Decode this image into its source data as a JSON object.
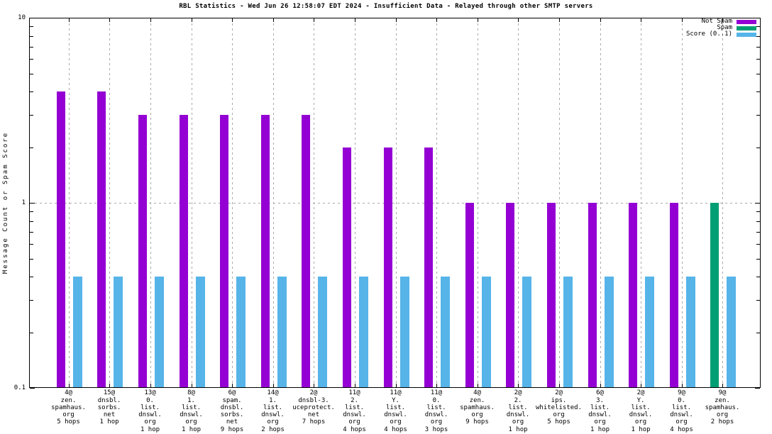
{
  "chart_data": {
    "type": "bar",
    "title": "RBL Statistics - Wed Jun 26 12:58:07 EDT 2024 - Insufficient Data - Relayed through other SMTP servers",
    "ylabel": "Message Count or Spam Score",
    "xlabel": "",
    "y_scale": "log",
    "ylim": [
      0.1,
      10
    ],
    "grid": {
      "horizontal_dashed_at": 1,
      "vertical_dashed_at_each_category": true,
      "color": "#a8a8a8"
    },
    "legend_position": "top-right-inside",
    "yticks": [
      {
        "value": 10,
        "label": "10"
      },
      {
        "value": 1,
        "label": "1"
      },
      {
        "value": 0.1,
        "label": "0.1"
      }
    ],
    "categories": [
      [
        "4@",
        "zen.",
        "spamhaus.",
        "org",
        "5 hops"
      ],
      [
        "15@",
        "dnsbl.",
        "sorbs.",
        "net",
        "1 hop"
      ],
      [
        "13@",
        "0.",
        "list.",
        "dnswl.",
        "org",
        "1 hop"
      ],
      [
        "8@",
        "1.",
        "list.",
        "dnswl.",
        "org",
        "1 hop"
      ],
      [
        "6@",
        "spam.",
        "dnsbl.",
        "sorbs.",
        "net",
        "9 hops"
      ],
      [
        "14@",
        "1.",
        "list.",
        "dnswl.",
        "org",
        "2 hops"
      ],
      [
        "2@",
        "dnsbl-3.",
        "uceprotect.",
        "net",
        "7 hops"
      ],
      [
        "11@",
        "2.",
        "list.",
        "dnswl.",
        "org",
        "4 hops"
      ],
      [
        "11@",
        "Y.",
        "list.",
        "dnswl.",
        "org",
        "4 hops"
      ],
      [
        "11@",
        "0.",
        "list.",
        "dnswl.",
        "org",
        "3 hops"
      ],
      [
        "4@",
        "zen.",
        "spamhaus.",
        "org",
        "9 hops"
      ],
      [
        "2@",
        "2.",
        "list.",
        "dnswl.",
        "org",
        "1 hop"
      ],
      [
        "2@",
        "ips.",
        "whitelisted.",
        "org",
        "5 hops"
      ],
      [
        "6@",
        "3.",
        "list.",
        "dnswl.",
        "org",
        "1 hop"
      ],
      [
        "2@",
        "Y.",
        "list.",
        "dnswl.",
        "org",
        "1 hop"
      ],
      [
        "9@",
        "0.",
        "list.",
        "dnswl.",
        "org",
        "4 hops"
      ],
      [
        "9@",
        "zen.",
        "spamhaus.",
        "org",
        "2 hops"
      ]
    ],
    "series": [
      {
        "name": "Not Spam",
        "color": "#9400d3",
        "values": [
          4,
          4,
          3,
          3,
          3,
          3,
          3,
          2,
          2,
          2,
          1,
          1,
          1,
          1,
          1,
          1,
          0
        ]
      },
      {
        "name": "Spam",
        "color": "#009e73",
        "values": [
          0,
          0,
          0,
          0,
          0,
          0,
          0,
          0,
          0,
          0,
          0,
          0,
          0,
          0,
          0,
          0,
          1
        ]
      },
      {
        "name": "Score (0..1)",
        "color": "#56b4e9",
        "values": [
          0.4,
          0.4,
          0.4,
          0.4,
          0.4,
          0.4,
          0.4,
          0.4,
          0.4,
          0.4,
          0.4,
          0.4,
          0.4,
          0.4,
          0.4,
          0.4,
          0.4
        ]
      }
    ],
    "axis_color": "#000000",
    "background_color": "#ffffff"
  }
}
